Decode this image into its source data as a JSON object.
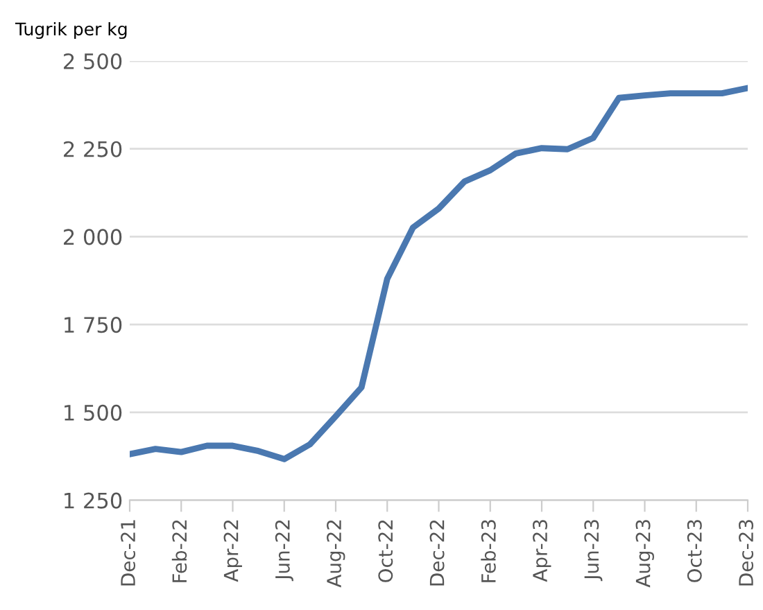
{
  "chart_data": {
    "type": "line",
    "ylabel": "Tugrik per kg",
    "categories": [
      "Dec-21",
      null,
      "Feb-22",
      null,
      "Apr-22",
      null,
      "Jun-22",
      null,
      "Aug-22",
      null,
      "Oct-22",
      null,
      "Dec-22",
      null,
      "Feb-23",
      null,
      "Apr-23",
      null,
      "Jun-23",
      null,
      "Aug-23",
      null,
      "Oct-23",
      null,
      "Dec-23"
    ],
    "series": [
      {
        "color": "#4a78b0",
        "values": [
          1381,
          1396,
          1387,
          1405,
          1405,
          1390,
          1367,
          1409,
          1489,
          1571,
          1880,
          2026,
          2080,
          2157,
          2189,
          2237,
          2252,
          2249,
          2281,
          2395,
          2402,
          2408,
          2408,
          2408,
          2423
        ]
      }
    ],
    "ylim": [
      1250,
      2500
    ],
    "yticks": [
      {
        "value": 1250,
        "label": "1 250"
      },
      {
        "value": 1500,
        "label": "1 500"
      },
      {
        "value": 1750,
        "label": "1 750"
      },
      {
        "value": 2000,
        "label": "2 000"
      },
      {
        "value": 2250,
        "label": "2 250"
      },
      {
        "value": 2500,
        "label": "2 500"
      }
    ],
    "grid": "y",
    "legend": false,
    "marker": "none",
    "line_style": "solid"
  }
}
